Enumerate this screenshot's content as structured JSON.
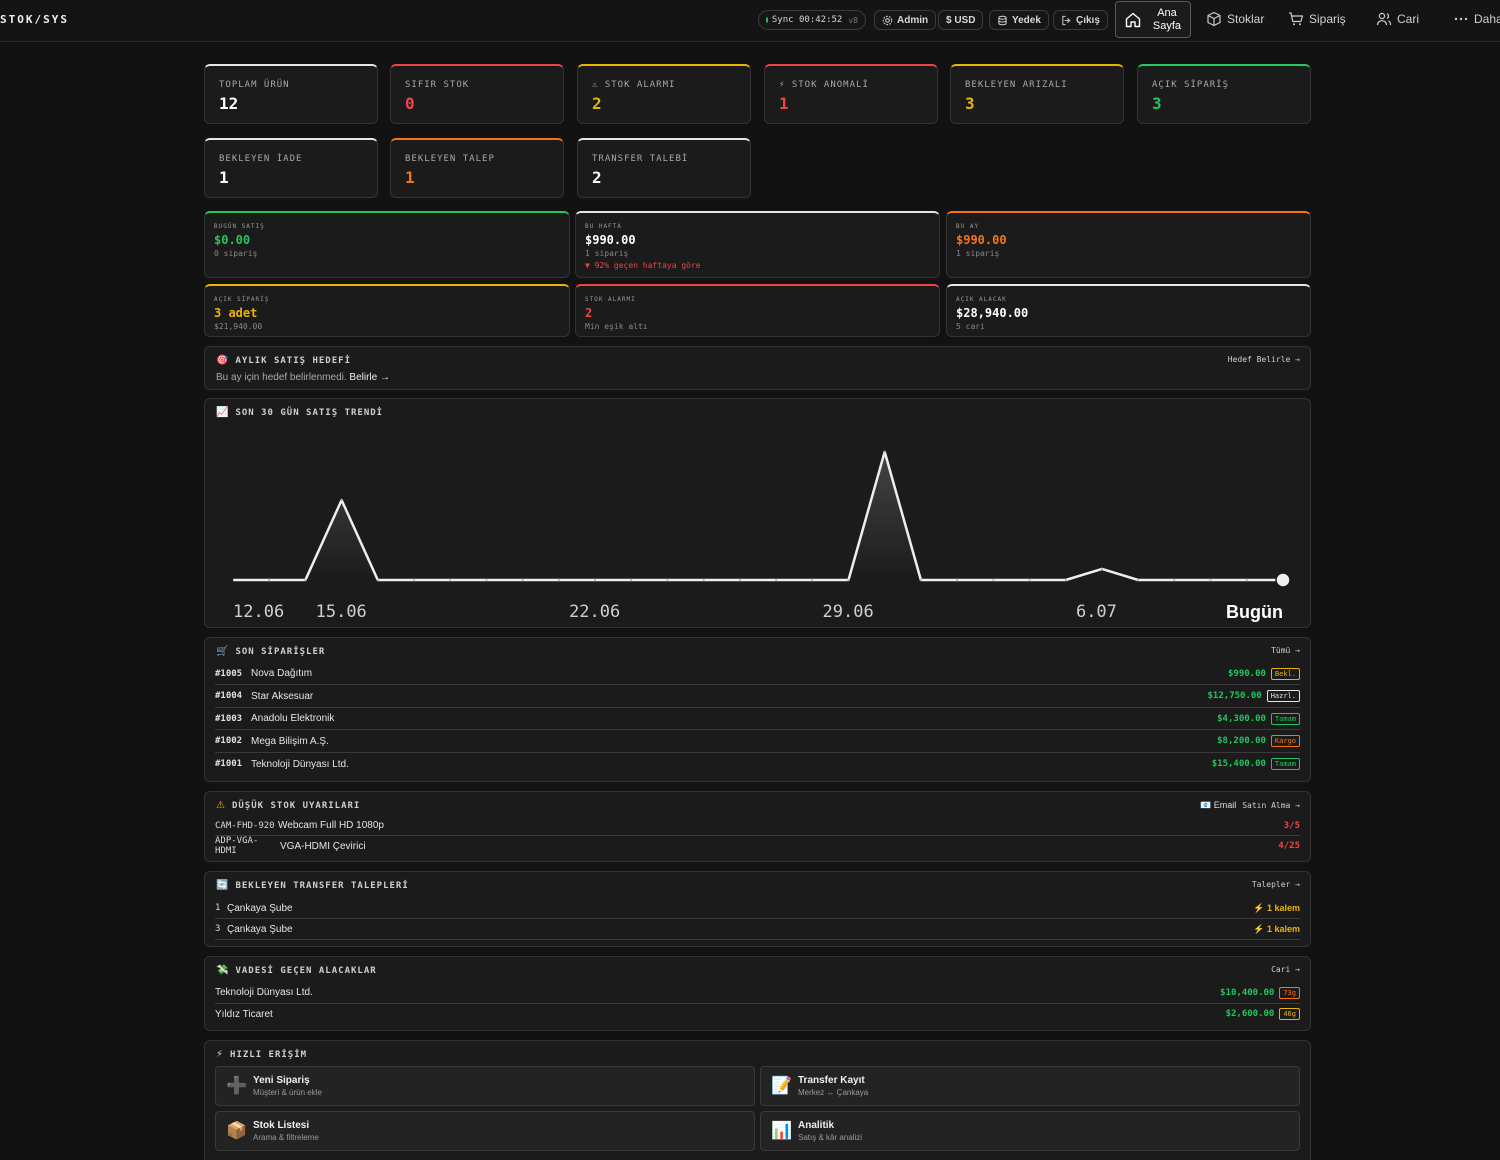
{
  "brand": "STOK/SYS",
  "topbar": {
    "sync_label": "Sync",
    "sync_time": "00:42:52",
    "sync_version": "v8",
    "admin": "Admin",
    "currency": "$ USD",
    "backup": "Yedek",
    "logout": "Çıkış",
    "home": "Ana Sayfa",
    "nav": [
      "Stoklar",
      "Sipariş",
      "Cari",
      "Daha"
    ]
  },
  "stats": [
    {
      "label": "TOPLAM ÜRÜN",
      "value": "12",
      "color": "#ffffff",
      "accent": "#e5e5e5"
    },
    {
      "label": "SIFIR STOK",
      "value": "0",
      "color": "#ef4444",
      "accent": "#ef4444"
    },
    {
      "label": "⚠ STOK ALARMI",
      "value": "2",
      "color": "#eab308",
      "accent": "#eab308"
    },
    {
      "label": "⚡ STOK ANOMALİ",
      "value": "1",
      "color": "#ef4444",
      "accent": "#ef4444"
    },
    {
      "label": "BEKLEYEN ARIZALI",
      "value": "3",
      "color": "#eab308",
      "accent": "#eab308"
    },
    {
      "label": "AÇIK SİPARİŞ",
      "value": "3",
      "color": "#22c55e",
      "accent": "#22c55e"
    },
    {
      "label": "BEKLEYEN İADE",
      "value": "1",
      "color": "#ffffff",
      "accent": "#e5e5e5"
    },
    {
      "label": "BEKLEYEN TALEP",
      "value": "1",
      "color": "#f97316",
      "accent": "#f97316"
    },
    {
      "label": "TRANSFER TALEBİ",
      "value": "2",
      "color": "#ffffff",
      "accent": "#e5e5e5"
    }
  ],
  "summary": [
    {
      "label": "BUGÜN SATIŞ",
      "value": "$0.00",
      "sub": "0 sipariş",
      "sub2": "",
      "color": "#22c55e",
      "accent": "#22c55e"
    },
    {
      "label": "BU HAFTA",
      "value": "$990.00",
      "sub": "1 sipariş",
      "sub2": "▼ 92% geçen haftaya göre",
      "color": "#ffffff",
      "accent": "#e5e5e5"
    },
    {
      "label": "BU AY",
      "value": "$990.00",
      "sub": "1 sipariş",
      "sub2": "",
      "color": "#f97316",
      "accent": "#f97316"
    },
    {
      "label": "AÇIK SİPARİŞ",
      "value": "3 adet",
      "sub": "$21,940.00",
      "sub2": "",
      "color": "#eab308",
      "accent": "#eab308"
    },
    {
      "label": "STOK ALARMI",
      "value": "2",
      "sub": "Min eşik altı",
      "sub2": "",
      "color": "#ef4444",
      "accent": "#ef4444"
    },
    {
      "label": "AÇIK ALACAK",
      "value": "$28,940.00",
      "sub": "5 cari",
      "sub2": "",
      "color": "#ffffff",
      "accent": "#e5e5e5"
    }
  ],
  "goal": {
    "icon": "🎯",
    "title": "AYLIK SATIŞ HEDEFİ",
    "link": "Hedef Belirle →",
    "text": "Bu ay için hedef belirlenmedi.",
    "action": "Belirle →"
  },
  "trend": {
    "icon": "📈",
    "title": "SON 30 GÜN SATIŞ TRENDİ"
  },
  "chart_data": {
    "type": "area",
    "x": [
      "12.06",
      "13.06",
      "14.06",
      "15.06",
      "16.06",
      "17.06",
      "18.06",
      "19.06",
      "20.06",
      "21.06",
      "22.06",
      "23.06",
      "24.06",
      "25.06",
      "26.06",
      "27.06",
      "28.06",
      "29.06",
      "30.06",
      "1.07",
      "2.07",
      "3.07",
      "4.07",
      "5.07",
      "6.07",
      "7.07",
      "8.07",
      "9.07",
      "10.07",
      "Bugün"
    ],
    "series": [
      {
        "values": [
          0,
          0,
          0,
          4300,
          0,
          0,
          0,
          0,
          0,
          0,
          0,
          0,
          0,
          0,
          0,
          0,
          0,
          0,
          6900,
          0,
          0,
          0,
          0,
          0,
          600,
          0,
          0,
          0,
          0,
          0
        ]
      }
    ],
    "tick_labels": [
      "12.06",
      "15.06",
      "22.06",
      "29.06",
      "6.07",
      "Bugün"
    ],
    "ylim": [
      0,
      7000
    ],
    "grid": false
  },
  "orders": {
    "icon": "🛒",
    "title": "SON SİPARİŞLER",
    "link": "Tümü →",
    "rows": [
      {
        "id": "#1005",
        "name": "Nova Dağıtım",
        "amount": "$990.00",
        "status": "Bekl.",
        "status_color": "#eab308"
      },
      {
        "id": "#1004",
        "name": "Star Aksesuar",
        "amount": "$12,750.00",
        "status": "Hazrl.",
        "status_color": "#e5e5e5"
      },
      {
        "id": "#1003",
        "name": "Anadolu Elektronik",
        "amount": "$4,300.00",
        "status": "Tamam",
        "status_color": "#22c55e"
      },
      {
        "id": "#1002",
        "name": "Mega Bilişim A.Ş.",
        "amount": "$8,200.00",
        "status": "Kargo",
        "status_color": "#f97316"
      },
      {
        "id": "#1001",
        "name": "Teknoloji Dünyası Ltd.",
        "amount": "$15,400.00",
        "status": "Tamam",
        "status_color": "#22c55e"
      }
    ]
  },
  "lowstock": {
    "icon": "⚠",
    "title": "DÜŞÜK STOK UYARILARI",
    "email": "📧 Email",
    "link": "Satın Alma →",
    "rows": [
      {
        "sku": "CAM-FHD-920",
        "name": "Webcam Full HD 1080p",
        "qty": "3/5"
      },
      {
        "sku": "ADP-VGA-HDMI",
        "name": "VGA-HDMI Çevirici",
        "qty": "4/25"
      }
    ]
  },
  "transfers": {
    "icon": "🔄",
    "title": "BEKLEYEN TRANSFER TALEPLERİ",
    "link": "Talepler →",
    "rows": [
      {
        "no": "1",
        "name": "Çankaya Şube",
        "items": "⚡ 1 kalem"
      },
      {
        "no": "3",
        "name": "Çankaya Şube",
        "items": "⚡ 1 kalem"
      }
    ]
  },
  "receivables": {
    "icon": "💸",
    "title": "VADESİ GEÇEN ALACAKLAR",
    "link": "Cari →",
    "rows": [
      {
        "name": "Teknoloji Dünyası Ltd.",
        "amount": "$10,400.00",
        "days": "73g",
        "color": "#f97316"
      },
      {
        "name": "Yıldız Ticaret",
        "amount": "$2,600.00",
        "days": "46g",
        "color": "#eab308"
      }
    ]
  },
  "quick": {
    "icon": "⚡",
    "title": "HIZLI ERİŞİM",
    "items": [
      {
        "icon": "➕",
        "title": "Yeni Sipariş",
        "sub": "Müşteri & ürün ekle"
      },
      {
        "icon": "📝",
        "title": "Transfer Kayıt",
        "sub": "Merkez ↔ Çankaya"
      },
      {
        "icon": "📦",
        "title": "Stok Listesi",
        "sub": "Arama & filtreleme"
      },
      {
        "icon": "📊",
        "title": "Analitik",
        "sub": "Satış & kâr analizi"
      }
    ]
  }
}
